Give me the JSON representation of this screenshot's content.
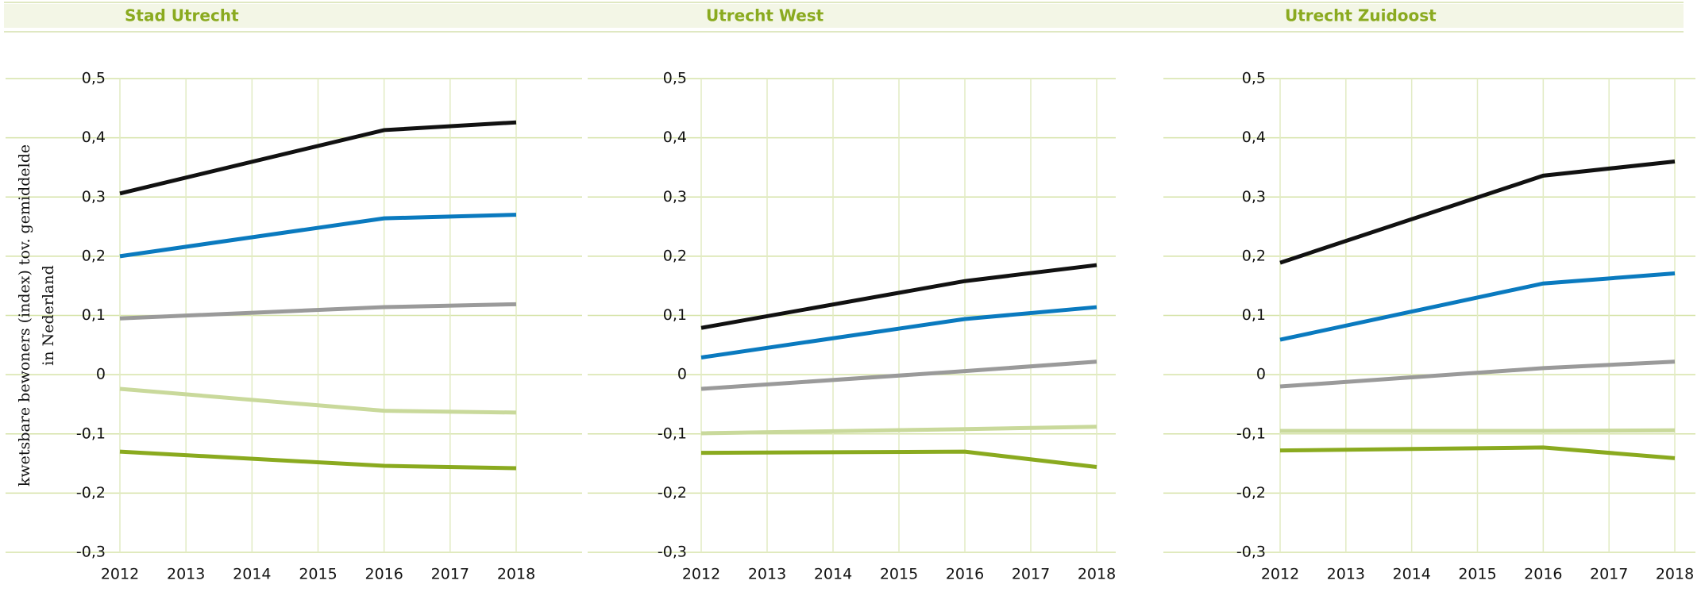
{
  "chart_data": [
    {
      "type": "line",
      "title": "Stad Utrecht",
      "y_label": [
        "kwetsbare bewoners (index) tov. gemiddelde",
        "in Nederland"
      ],
      "x": [
        2012,
        2016,
        2018
      ],
      "xlim": [
        2012,
        2018
      ],
      "xticks": [
        2012,
        2013,
        2014,
        2015,
        2016,
        2017,
        2018
      ],
      "ylim": [
        -0.3,
        0.5
      ],
      "yticks": [
        {
          "value": -0.3,
          "label": "-0,3"
        },
        {
          "value": -0.2,
          "label": "-0,2"
        },
        {
          "value": -0.1,
          "label": "-0,1"
        },
        0,
        {
          "value": 0.1,
          "label": "0,1"
        },
        {
          "value": 0.2,
          "label": "0,2"
        },
        {
          "value": 0.3,
          "label": "0,3"
        },
        {
          "value": 0.4,
          "label": "0,4"
        },
        {
          "value": 0.5,
          "label": "0,5"
        }
      ],
      "grid": true,
      "series": [
        {
          "color": "#111111",
          "values": [
            0.306,
            0.413,
            0.426
          ]
        },
        {
          "color": "#0a7abf",
          "values": [
            0.2,
            0.264,
            0.27
          ]
        },
        {
          "color": "#9a9a9a",
          "values": [
            0.095,
            0.114,
            0.119
          ]
        },
        {
          "color": "#c9d99b",
          "values": [
            -0.024,
            -0.061,
            -0.064
          ]
        },
        {
          "color": "#8aaa1f",
          "values": [
            -0.13,
            -0.154,
            -0.158
          ]
        }
      ]
    },
    {
      "type": "line",
      "title": "Utrecht West",
      "x": [
        2012,
        2016,
        2018
      ],
      "xlim": [
        2012,
        2018
      ],
      "xticks": [
        2012,
        2013,
        2014,
        2015,
        2016,
        2017,
        2018
      ],
      "ylim": [
        -0.3,
        0.5
      ],
      "yticks": [
        {
          "value": -0.3,
          "label": "-0,3"
        },
        {
          "value": -0.2,
          "label": "-0,2"
        },
        {
          "value": -0.1,
          "label": "-0,1"
        },
        0,
        {
          "value": 0.1,
          "label": "0,1"
        },
        {
          "value": 0.2,
          "label": "0,2"
        },
        {
          "value": 0.3,
          "label": "0,3"
        },
        {
          "value": 0.4,
          "label": "0,4"
        },
        {
          "value": 0.5,
          "label": "0,5"
        }
      ],
      "grid": true,
      "series": [
        {
          "color": "#111111",
          "values": [
            0.079,
            0.158,
            0.185
          ]
        },
        {
          "color": "#0a7abf",
          "values": [
            0.029,
            0.094,
            0.114
          ]
        },
        {
          "color": "#9a9a9a",
          "values": [
            -0.024,
            0.006,
            0.022
          ]
        },
        {
          "color": "#c9d99b",
          "values": [
            -0.099,
            -0.092,
            -0.088
          ]
        },
        {
          "color": "#8aaa1f",
          "values": [
            -0.132,
            -0.13,
            -0.156
          ]
        }
      ]
    },
    {
      "type": "line",
      "title": "Utrecht Zuidoost",
      "x": [
        2012,
        2016,
        2018
      ],
      "xlim": [
        2012,
        2018
      ],
      "xticks": [
        2012,
        2013,
        2014,
        2015,
        2016,
        2017,
        2018
      ],
      "ylim": [
        -0.3,
        0.5
      ],
      "yticks": [
        {
          "value": -0.3,
          "label": "-0,3"
        },
        {
          "value": -0.2,
          "label": "-0,2"
        },
        {
          "value": -0.1,
          "label": "-0,1"
        },
        0,
        {
          "value": 0.1,
          "label": "0,1"
        },
        {
          "value": 0.2,
          "label": "0,2"
        },
        {
          "value": 0.3,
          "label": "0,3"
        },
        {
          "value": 0.4,
          "label": "0,4"
        },
        {
          "value": 0.5,
          "label": "0,5"
        }
      ],
      "grid": true,
      "series": [
        {
          "color": "#111111",
          "values": [
            0.189,
            0.336,
            0.36
          ]
        },
        {
          "color": "#0a7abf",
          "values": [
            0.059,
            0.154,
            0.171
          ]
        },
        {
          "color": "#9a9a9a",
          "values": [
            -0.02,
            0.011,
            0.022
          ]
        },
        {
          "color": "#c9d99b",
          "values": [
            -0.095,
            -0.095,
            -0.094
          ]
        },
        {
          "color": "#8aaa1f",
          "values": [
            -0.128,
            -0.123,
            -0.141
          ]
        }
      ]
    }
  ]
}
